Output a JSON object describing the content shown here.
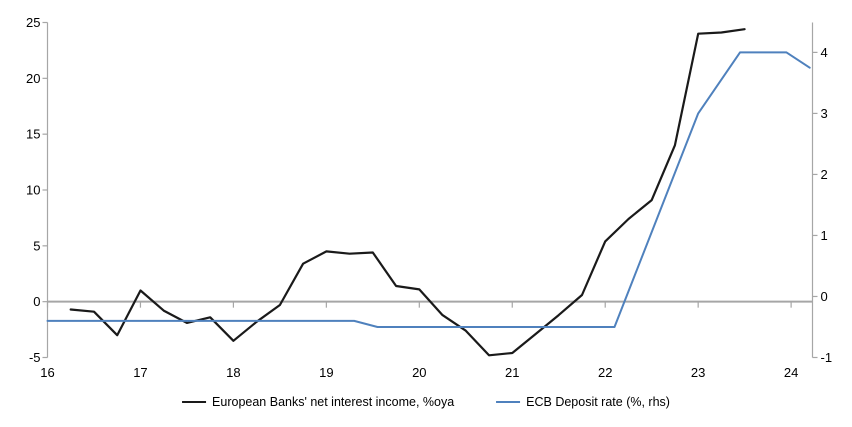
{
  "colors": {
    "background": "#ffffff",
    "axis": "#a6a6a6",
    "zero_line": "#a6a6a6",
    "series_nii": "#1a1a1a",
    "series_ecb": "#4f81bd",
    "text": "#000000"
  },
  "chart_data": {
    "type": "line",
    "title": "",
    "xlabel": "",
    "ylabel_left": "",
    "ylabel_right": "",
    "grid": "zero-line-only",
    "legend_position": "bottom",
    "x_axis": {
      "min": 16,
      "max": 24.23,
      "tick_values": [
        16,
        17,
        18,
        19,
        20,
        21,
        22,
        23,
        24
      ],
      "tick_labels": [
        "16",
        "17",
        "18",
        "19",
        "20",
        "21",
        "22",
        "23",
        "24"
      ]
    },
    "left_axis": {
      "min": -5,
      "max": 25,
      "tick_values": [
        25,
        20,
        15,
        10,
        5,
        0,
        -5
      ],
      "tick_labels": [
        "25",
        "20",
        "15",
        "10",
        "5",
        "0",
        "-5"
      ]
    },
    "right_axis": {
      "min": -1,
      "max": 4.49,
      "tick_values": [
        4,
        3,
        2,
        1,
        0,
        -1
      ],
      "tick_labels": [
        "4",
        "3",
        "2",
        "1",
        "0",
        "-1"
      ]
    },
    "series": [
      {
        "name": "European Banks' net interest income, %oya",
        "axis": "left",
        "color": "#1a1a1a",
        "width": 2.2,
        "points": [
          [
            16.25,
            -0.7
          ],
          [
            16.5,
            -0.9
          ],
          [
            16.75,
            -3.0
          ],
          [
            17.0,
            1.0
          ],
          [
            17.25,
            -0.8
          ],
          [
            17.5,
            -1.9
          ],
          [
            17.75,
            -1.4
          ],
          [
            18.0,
            -3.5
          ],
          [
            18.25,
            -1.8
          ],
          [
            18.5,
            -0.3
          ],
          [
            18.75,
            3.4
          ],
          [
            19.0,
            4.5
          ],
          [
            19.25,
            4.3
          ],
          [
            19.5,
            4.4
          ],
          [
            19.75,
            1.4
          ],
          [
            20.0,
            1.1
          ],
          [
            20.25,
            -1.2
          ],
          [
            20.5,
            -2.6
          ],
          [
            20.75,
            -4.8
          ],
          [
            21.0,
            -4.6
          ],
          [
            21.25,
            -2.9
          ],
          [
            21.5,
            -1.2
          ],
          [
            21.75,
            0.6
          ],
          [
            22.0,
            5.4
          ],
          [
            22.25,
            7.4
          ],
          [
            22.5,
            9.1
          ],
          [
            22.75,
            14.0
          ],
          [
            23.0,
            24.0
          ],
          [
            23.25,
            24.1
          ],
          [
            23.5,
            24.4
          ]
        ]
      },
      {
        "name": "ECB Deposit rate (%, rhs)",
        "axis": "right",
        "color": "#4f81bd",
        "width": 2,
        "points": [
          [
            16.0,
            -0.4
          ],
          [
            19.3,
            -0.4
          ],
          [
            19.55,
            -0.5
          ],
          [
            22.1,
            -0.5
          ],
          [
            23.0,
            3.0
          ],
          [
            23.45,
            4.0
          ],
          [
            23.95,
            4.0
          ],
          [
            24.2,
            3.75
          ]
        ]
      }
    ]
  }
}
